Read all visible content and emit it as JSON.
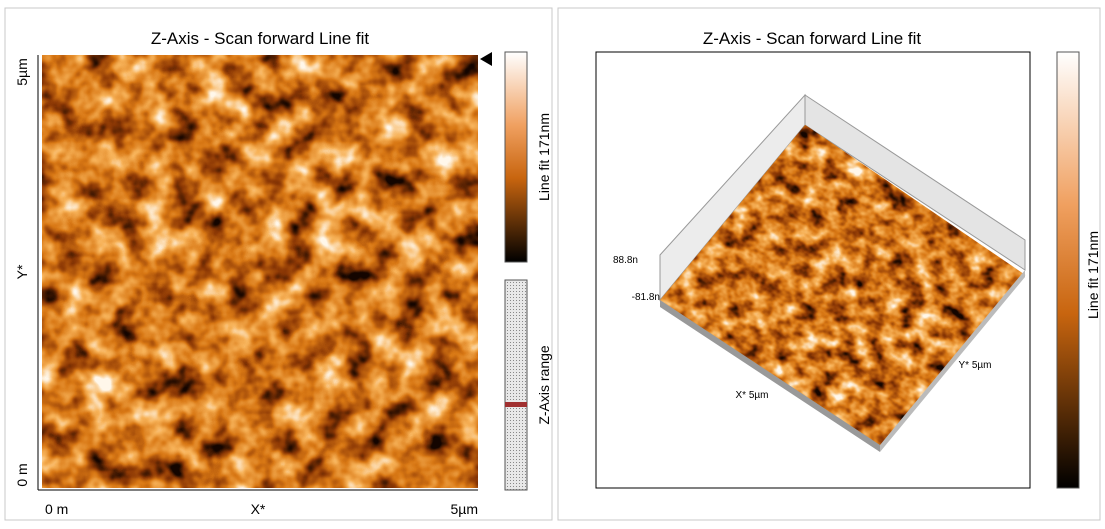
{
  "left_panel": {
    "title": "Z-Axis - Scan forward   Line fit",
    "y_axis": {
      "top": "5µm",
      "middle": "Y*",
      "bottom": "0 m"
    },
    "x_axis": {
      "left": "0 m",
      "middle": "X*",
      "right": "5µm"
    },
    "colorbar_label": "Line fit 171nm",
    "range_label": "Z-Axis range"
  },
  "right_panel": {
    "title": "Z-Axis - Scan forward   Line fit",
    "z_top": "88.8n",
    "z_bottom": "-81.8n",
    "x_label": "X* 5µm",
    "y_label": "Y* 5µm",
    "colorbar_label": "Line fit 171nm"
  }
}
